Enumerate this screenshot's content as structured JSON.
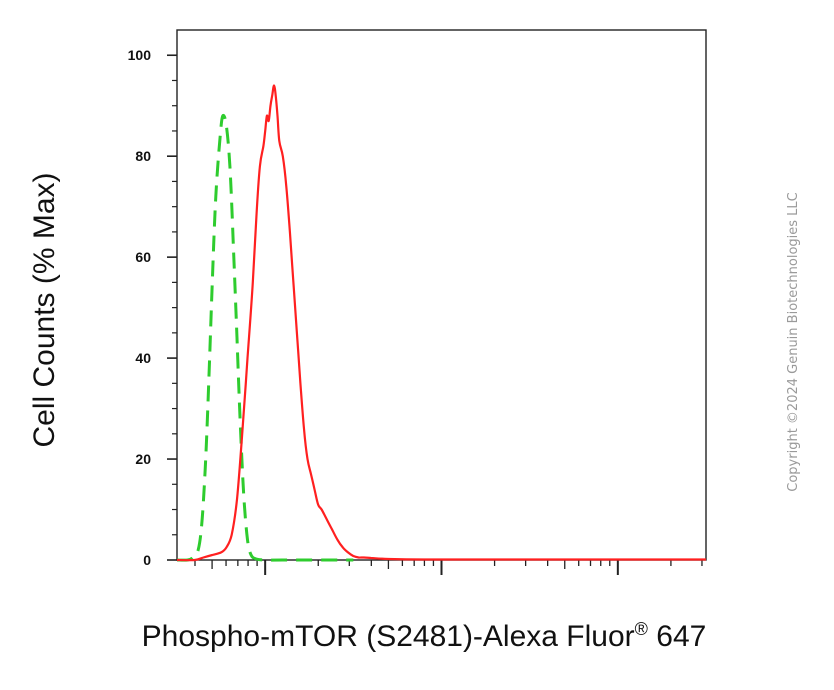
{
  "chart_data": {
    "type": "line",
    "xlabel": "Phospho-mTOR (S2481)-Alexa Fluor",
    "xlabel_superscript": "®",
    "xlabel_suffix": " 647",
    "ylabel": "Cell Counts (% Max)",
    "ylim": [
      0,
      100
    ],
    "yticks": [
      "0",
      "20",
      "40",
      "60",
      "80",
      "100"
    ],
    "x_scale": "log",
    "x_decades": 3,
    "grid": false,
    "series": [
      {
        "color": "#2ecc2e",
        "dash": true,
        "x": [
          0.0,
          0.06,
          0.09,
          0.12,
          0.14,
          0.16,
          0.18,
          0.2,
          0.22,
          0.245,
          0.26,
          0.28,
          0.3,
          0.32,
          0.34,
          0.36,
          0.38,
          0.4,
          0.42,
          0.45,
          0.5,
          0.6,
          1.0
        ],
        "values": [
          0,
          0,
          0.5,
          2,
          7,
          18,
          35,
          55,
          72,
          84,
          88,
          86,
          78,
          62,
          44,
          26,
          12,
          4,
          1,
          0.2,
          0,
          0,
          0
        ]
      },
      {
        "color": "#ff2020",
        "dash": false,
        "x": [
          0.0,
          0.1,
          0.15,
          0.2,
          0.25,
          0.28,
          0.31,
          0.34,
          0.37,
          0.4,
          0.43,
          0.45,
          0.47,
          0.49,
          0.5,
          0.51,
          0.52,
          0.53,
          0.54,
          0.55,
          0.56,
          0.57,
          0.58,
          0.6,
          0.62,
          0.64,
          0.66,
          0.68,
          0.7,
          0.72,
          0.74,
          0.76,
          0.78,
          0.8,
          0.82,
          0.85,
          0.88,
          0.91,
          0.94,
          0.97,
          1.0,
          1.03,
          1.06,
          1.1,
          1.2,
          1.4,
          1.8,
          2.4,
          3.0
        ],
        "values": [
          0,
          0,
          0.5,
          1,
          1.5,
          2.5,
          5,
          12,
          25,
          40,
          55,
          68,
          78,
          82,
          85,
          88,
          87,
          90,
          92,
          94,
          92,
          88,
          83,
          80,
          74,
          65,
          55,
          45,
          35,
          26,
          20,
          17,
          14,
          11,
          10,
          8,
          6,
          4,
          2.5,
          1.5,
          0.8,
          0.5,
          0.5,
          0.4,
          0.2,
          0.1,
          0.1,
          0.1,
          0.1
        ]
      }
    ]
  },
  "watermark": "Copyright ©2024 Genuin Biotechnologies LLC"
}
